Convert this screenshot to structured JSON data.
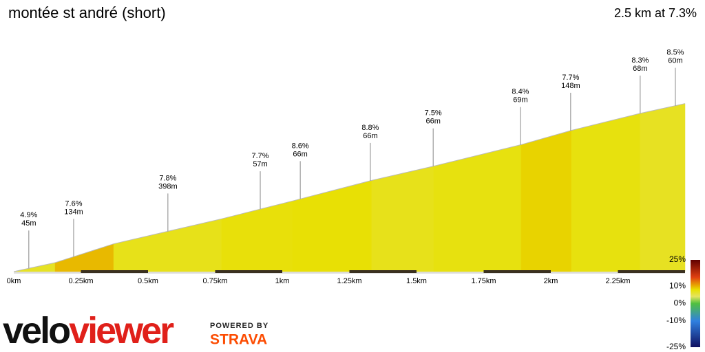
{
  "chart_data": {
    "type": "area",
    "title": "montée st andré (short)",
    "subtitle": "2.5 km at 7.3%",
    "x": [
      0,
      0.154,
      0.372,
      0.774,
      1.038,
      1.333,
      1.564,
      1.89,
      2.077,
      2.333,
      2.5
    ],
    "values": [
      0,
      10,
      31,
      59,
      79,
      102,
      118,
      142,
      158,
      177,
      188
    ],
    "xlim": [
      0,
      2.5
    ],
    "ylim": [
      0,
      190
    ],
    "xticks": [
      {
        "value": 0,
        "label": "0km"
      },
      {
        "value": 0.25,
        "label": "0.25km"
      },
      {
        "value": 0.5,
        "label": "0.5km"
      },
      {
        "value": 0.75,
        "label": "0.75km"
      },
      {
        "value": 1,
        "label": "1km"
      },
      {
        "value": 1.25,
        "label": "1.25km"
      },
      {
        "value": 1.5,
        "label": "1.5km"
      },
      {
        "value": 1.75,
        "label": "1.75km"
      },
      {
        "value": 2,
        "label": "2km"
      },
      {
        "value": 2.25,
        "label": "2.25km"
      }
    ],
    "annotations": {
      "x": [
        0.056,
        0.223,
        0.574,
        0.918,
        1.067,
        1.328,
        1.562,
        1.887,
        2.074,
        2.333,
        2.464
      ],
      "grades": [
        4.9,
        7.6,
        7.8,
        7.7,
        8.6,
        8.8,
        7.5,
        8.4,
        7.7,
        8.3,
        8.5
      ],
      "grade_labels": [
        "4.9%",
        "7.6%",
        "7.8%",
        "7.7%",
        "8.6%",
        "8.8%",
        "7.5%",
        "8.4%",
        "7.7%",
        "8.3%",
        "8.5%"
      ],
      "lengths": [
        45,
        134,
        398,
        57,
        66,
        66,
        66,
        69,
        148,
        68,
        60
      ],
      "length_labels": [
        "45m",
        "134m",
        "398m",
        "57m",
        "66m",
        "66m",
        "66m",
        "69m",
        "148m",
        "68m",
        "60m"
      ]
    },
    "colorbar": {
      "lim": [
        -25,
        25
      ],
      "ticks": [
        {
          "value": 25,
          "label": "25%"
        },
        {
          "value": 10,
          "label": "10%"
        },
        {
          "value": 0,
          "label": "0%"
        },
        {
          "value": -10,
          "label": "-10%"
        },
        {
          "value": -25,
          "label": "-25%"
        }
      ]
    },
    "colorscale": [
      [
        -25,
        "#101060"
      ],
      [
        -10,
        "#3080e0"
      ],
      [
        0,
        "#50c040"
      ],
      [
        4,
        "#e4e460"
      ],
      [
        8,
        "#e8e000"
      ],
      [
        10,
        "#e8b000"
      ],
      [
        15,
        "#e04010"
      ],
      [
        25,
        "#600000"
      ]
    ]
  },
  "branding": {
    "velo": "velo",
    "viewer": "viewer",
    "powered": "POWERED BY",
    "strava": "STRAVA"
  }
}
